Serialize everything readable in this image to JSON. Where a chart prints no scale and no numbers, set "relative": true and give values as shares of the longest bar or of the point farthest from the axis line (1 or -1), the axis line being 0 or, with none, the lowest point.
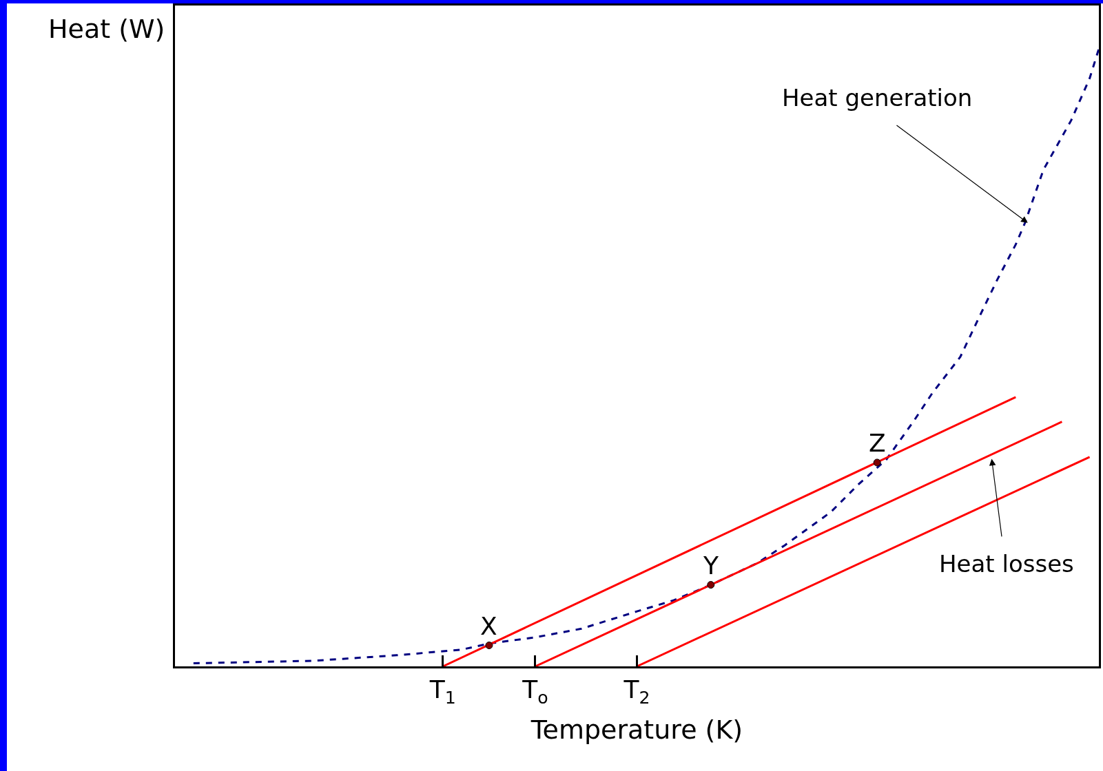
{
  "chart_data": {
    "type": "line",
    "relative": true,
    "xlabel": "Temperature (K)",
    "ylabel": "Heat (W)",
    "categories": [
      null,
      null,
      null,
      null,
      null,
      null,
      null,
      null,
      null,
      null,
      null,
      null,
      null,
      null,
      null,
      null,
      null,
      null,
      null,
      null,
      null,
      null,
      null,
      null,
      null,
      null,
      null,
      null,
      null,
      "T$_{1}$",
      null,
      null,
      null,
      null,
      null,
      null,
      null,
      null,
      null,
      "T$_{o}$",
      null,
      null,
      null,
      null,
      null,
      null,
      null,
      null,
      null,
      null,
      "T$_{2}$",
      null,
      null,
      null,
      null,
      null,
      null,
      null,
      null,
      null,
      null,
      null,
      null,
      null,
      null,
      null,
      null,
      null,
      null,
      null,
      null,
      null,
      null,
      null,
      null,
      null,
      null,
      null,
      null,
      null,
      null,
      null,
      null,
      null,
      null,
      null,
      null,
      null,
      null,
      null,
      null,
      null,
      null,
      null,
      null,
      null,
      null,
      null,
      null,
      null,
      null
    ],
    "grid": false,
    "tick_labels": "x",
    "series": [
      {
        "color": "#000080",
        "line_style": "dashed",
        "marker": "none",
        "values": [
          null,
          null,
          0.005,
          null,
          null,
          null,
          null,
          null,
          null,
          null,
          null,
          null,
          null,
          null,
          null,
          0.009,
          null,
          null,
          null,
          null,
          null,
          null,
          null,
          null,
          0.018,
          null,
          null,
          null,
          null,
          null,
          null,
          0.027,
          null,
          null,
          0.037,
          null,
          null,
          null,
          null,
          0.047,
          null,
          null,
          null,
          null,
          0.061,
          null,
          null,
          0.075,
          null,
          null,
          0.089,
          null,
          null,
          null,
          0.107,
          null,
          null,
          null,
          0.132,
          null,
          null,
          null,
          null,
          0.167,
          null,
          null,
          0.196,
          null,
          null,
          null,
          null,
          0.25,
          null,
          null,
          0.295,
          null,
          null,
          0.335,
          null,
          null,
          0.398,
          null,
          0.443,
          null,
          null,
          0.501,
          null,
          0.564,
          null,
          0.626,
          null,
          0.683,
          0.718,
          null,
          0.804,
          null,
          null,
          0.884,
          null,
          0.952,
          1.0
        ]
      },
      {
        "color": "#ff0000",
        "line_style": "solid",
        "marker": "none",
        "values": [
          null,
          null,
          null,
          null,
          null,
          null,
          null,
          null,
          null,
          null,
          null,
          null,
          null,
          null,
          null,
          null,
          null,
          null,
          null,
          null,
          null,
          null,
          null,
          null,
          null,
          null,
          null,
          null,
          null,
          0,
          null,
          null,
          null,
          null,
          null,
          null,
          null,
          null,
          null,
          null,
          null,
          null,
          null,
          null,
          null,
          null,
          null,
          null,
          null,
          null,
          null,
          null,
          null,
          null,
          null,
          null,
          null,
          null,
          null,
          null,
          null,
          null,
          null,
          null,
          null,
          null,
          null,
          null,
          null,
          null,
          null,
          null,
          null,
          null,
          null,
          null,
          null,
          null,
          null,
          null,
          null,
          null,
          null,
          null,
          null,
          null,
          null,
          null,
          null,
          null,
          null,
          0.436,
          null,
          null,
          null,
          null,
          null,
          null,
          null,
          null,
          null
        ]
      },
      {
        "color": "#ff0000",
        "line_style": "solid",
        "marker": "none",
        "values": [
          null,
          null,
          null,
          null,
          null,
          null,
          null,
          null,
          null,
          null,
          null,
          null,
          null,
          null,
          null,
          null,
          null,
          null,
          null,
          null,
          null,
          null,
          null,
          null,
          null,
          null,
          null,
          null,
          null,
          null,
          null,
          null,
          null,
          null,
          null,
          null,
          null,
          null,
          null,
          0,
          null,
          null,
          null,
          null,
          null,
          null,
          null,
          null,
          null,
          null,
          null,
          null,
          null,
          null,
          null,
          null,
          null,
          null,
          null,
          null,
          null,
          null,
          null,
          null,
          null,
          null,
          null,
          null,
          null,
          null,
          null,
          null,
          null,
          null,
          null,
          null,
          null,
          null,
          null,
          null,
          null,
          null,
          null,
          null,
          null,
          null,
          null,
          null,
          null,
          null,
          null,
          null,
          null,
          null,
          null,
          null,
          0.396,
          null,
          null,
          null,
          null
        ]
      },
      {
        "color": "#ff0000",
        "line_style": "solid",
        "marker": "none",
        "values": [
          null,
          null,
          null,
          null,
          null,
          null,
          null,
          null,
          null,
          null,
          null,
          null,
          null,
          null,
          null,
          null,
          null,
          null,
          null,
          null,
          null,
          null,
          null,
          null,
          null,
          null,
          null,
          null,
          null,
          null,
          null,
          null,
          null,
          null,
          null,
          null,
          null,
          null,
          null,
          null,
          null,
          null,
          null,
          null,
          null,
          null,
          null,
          null,
          null,
          null,
          0,
          null,
          null,
          null,
          null,
          null,
          null,
          null,
          null,
          null,
          null,
          null,
          null,
          null,
          null,
          null,
          null,
          null,
          null,
          null,
          null,
          null,
          null,
          null,
          null,
          null,
          null,
          null,
          null,
          null,
          null,
          null,
          null,
          null,
          null,
          null,
          null,
          null,
          null,
          null,
          null,
          null,
          null,
          null,
          null,
          null,
          null,
          null,
          null,
          0.339,
          null
        ]
      },
      {
        "type": "scatter",
        "color": "#800000",
        "marker": "circle",
        "values": [
          null,
          null,
          null,
          null,
          null,
          null,
          null,
          null,
          null,
          null,
          null,
          null,
          null,
          null,
          null,
          null,
          null,
          null,
          null,
          null,
          null,
          null,
          null,
          null,
          null,
          null,
          null,
          null,
          null,
          null,
          null,
          null,
          null,
          null,
          0.034,
          null,
          null,
          null,
          null,
          null,
          null,
          null,
          null,
          null,
          null,
          null,
          null,
          null,
          null,
          null,
          null,
          null,
          null,
          null,
          null,
          null,
          null,
          null,
          0.132,
          null,
          null,
          null,
          null,
          null,
          null,
          null,
          null,
          null,
          null,
          null,
          null,
          null,
          null,
          null,
          null,
          null,
          0.33,
          null,
          null,
          null,
          null,
          null,
          null,
          null,
          null,
          null,
          null,
          null,
          null,
          null,
          null,
          null,
          null,
          null,
          null,
          null,
          null,
          null,
          null,
          null,
          null
        ]
      }
    ],
    "annotations": [
      "X",
      "Y",
      "Z",
      "Heat generation",
      "Heat losses"
    ]
  }
}
